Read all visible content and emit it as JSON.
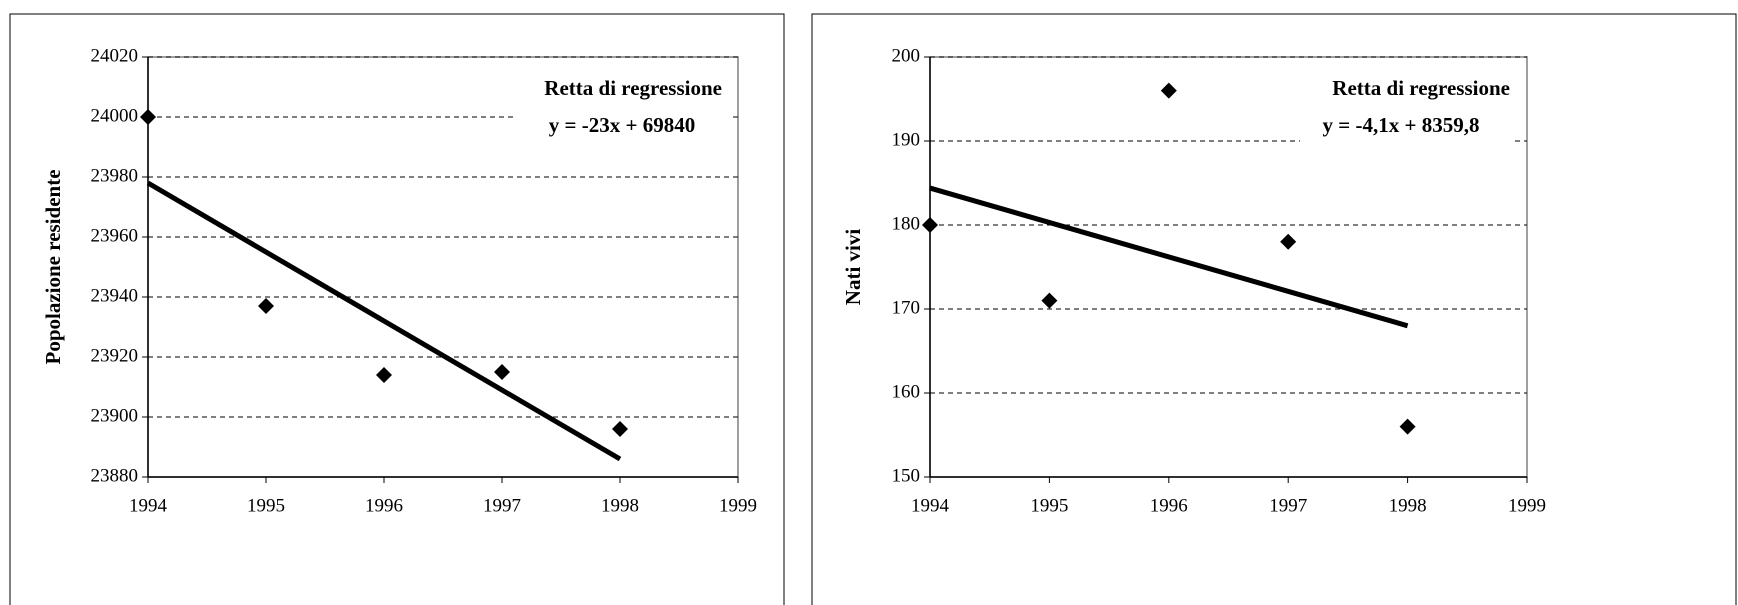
{
  "chart_data": [
    {
      "type": "scatter",
      "y_label": "Popolazione residente",
      "annotations": [
        "Retta di regressione",
        "y = -23x + 69840"
      ],
      "x": [
        1994,
        1995,
        1996,
        1997,
        1998
      ],
      "values": [
        24000,
        23937,
        23914,
        23915,
        23896
      ],
      "color": "#000000",
      "trendline": {
        "x": [
          1994,
          1998
        ],
        "values": [
          23978,
          23886
        ],
        "color": "#000000"
      },
      "xlim": [
        1994,
        1999
      ],
      "xticks": [
        1994,
        1995,
        1996,
        1997,
        1998,
        1999
      ],
      "ylim": [
        23880,
        24020
      ],
      "yticks": [
        23880,
        23900,
        23920,
        23940,
        23960,
        23980,
        24000,
        24020
      ],
      "grid": true
    },
    {
      "type": "scatter",
      "y_label": "Nati vivi",
      "annotations": [
        "Retta di regressione",
        "y = -4,1x + 8359,8"
      ],
      "x": [
        1994,
        1995,
        1996,
        1997,
        1998
      ],
      "values": [
        180,
        171,
        196,
        178,
        156
      ],
      "color": "#000000",
      "trendline": {
        "x": [
          1994,
          1998
        ],
        "values": [
          184.4,
          168.0
        ],
        "color": "#000000"
      },
      "xlim": [
        1994,
        1999
      ],
      "xticks": [
        1994,
        1995,
        1996,
        1997,
        1998,
        1999
      ],
      "ylim": [
        150,
        200
      ],
      "yticks": [
        150,
        160,
        170,
        180,
        190,
        200
      ],
      "grid": true
    }
  ]
}
